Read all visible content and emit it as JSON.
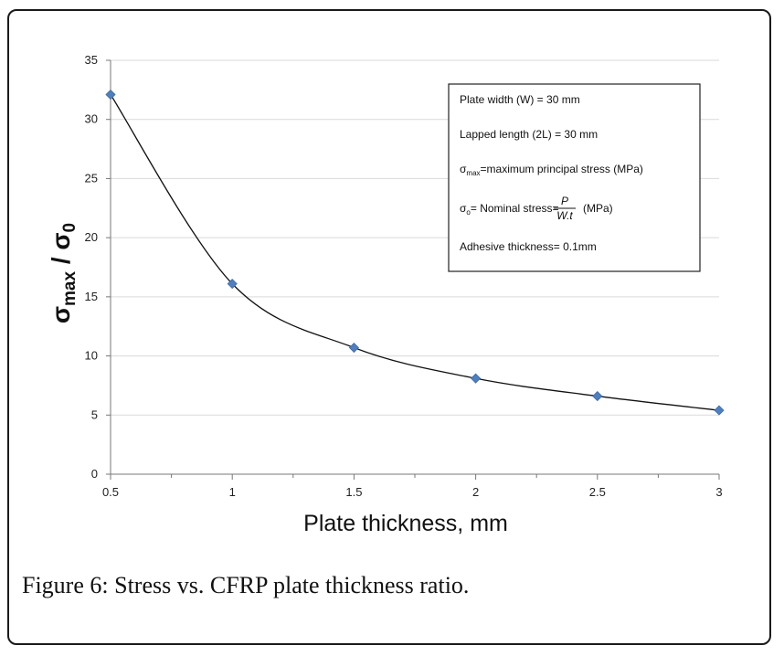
{
  "caption": {
    "label": "Figure 6:",
    "text": " Stress vs. CFRP plate thickness ratio."
  },
  "legend_box": {
    "line1": "Plate width (W) = 30 mm",
    "line2": "Lapped length (2L) = 30 mm",
    "line3_sym": "σ",
    "line3_sub": "max",
    "line3_rest": "=maximum principal stress (MPa)",
    "line4_sym": "σ",
    "line4_sub": "o",
    "line4_rest": "= Nominal stress=",
    "line4_num": "P",
    "line4_den": "W.t",
    "line4_unit": "(MPa)",
    "line5": "Adhesive thickness= 0.1mm"
  },
  "chart_data": {
    "type": "scatter",
    "xlabel": "Plate thickness, mm",
    "ylabel_main": "σ",
    "ylabel_sub1": "max",
    "ylabel_sep": " / σ",
    "ylabel_sub2": "0",
    "xlim": [
      0.5,
      3
    ],
    "ylim": [
      0,
      35
    ],
    "xticks": [
      0.5,
      1,
      1.5,
      2,
      2.5,
      3
    ],
    "yticks": [
      0,
      5,
      10,
      15,
      20,
      25,
      30,
      35
    ],
    "grid": "horizontal",
    "marker": "diamond",
    "marker_color": "#4f7fc0",
    "line_color": "#111111",
    "smooth_line": true,
    "x": [
      0.5,
      1,
      1.5,
      2,
      2.5,
      3
    ],
    "y": [
      32.1,
      16.1,
      10.7,
      8.1,
      6.6,
      5.4
    ]
  }
}
